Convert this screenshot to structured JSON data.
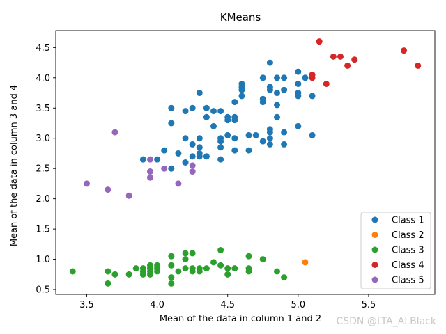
{
  "chart_data": {
    "type": "scatter",
    "title": "KMeans",
    "xlabel": "Mean of the data in column 1 and 2",
    "ylabel": "Mean of the data in column 3 and 4",
    "xlim": [
      3.28,
      5.97
    ],
    "ylim": [
      0.42,
      4.78
    ],
    "xticks": [
      3.5,
      4.0,
      4.5,
      5.0,
      5.5
    ],
    "xtick_labels": [
      "3.5",
      "4.0",
      "4.5",
      "5.0",
      "5.5"
    ],
    "yticks": [
      0.5,
      1.0,
      1.5,
      2.0,
      2.5,
      3.0,
      3.5,
      4.0,
      4.5
    ],
    "ytick_labels": [
      "0.5",
      "1.0",
      "1.5",
      "2.0",
      "2.5",
      "3.0",
      "3.5",
      "4.0",
      "4.5"
    ],
    "grid": false,
    "legend_position": "lower-right",
    "series": [
      {
        "name": "Class 1",
        "color": "#1f77b4",
        "points": [
          [
            3.9,
            2.65
          ],
          [
            4.0,
            2.65
          ],
          [
            4.05,
            2.8
          ],
          [
            4.1,
            2.5
          ],
          [
            4.1,
            3.25
          ],
          [
            4.1,
            3.5
          ],
          [
            4.15,
            2.75
          ],
          [
            4.2,
            2.6
          ],
          [
            4.2,
            3.0
          ],
          [
            4.2,
            3.45
          ],
          [
            4.25,
            2.7
          ],
          [
            4.25,
            2.9
          ],
          [
            4.25,
            3.5
          ],
          [
            4.3,
            2.7
          ],
          [
            4.3,
            2.75
          ],
          [
            4.3,
            2.85
          ],
          [
            4.3,
            3.0
          ],
          [
            4.3,
            3.75
          ],
          [
            4.35,
            2.7
          ],
          [
            4.35,
            3.35
          ],
          [
            4.35,
            3.5
          ],
          [
            4.4,
            3.2
          ],
          [
            4.4,
            3.45
          ],
          [
            4.45,
            2.65
          ],
          [
            4.45,
            2.85
          ],
          [
            4.45,
            2.95
          ],
          [
            4.45,
            3.0
          ],
          [
            4.45,
            3.45
          ],
          [
            4.5,
            3.05
          ],
          [
            4.5,
            3.3
          ],
          [
            4.5,
            3.35
          ],
          [
            4.55,
            2.8
          ],
          [
            4.55,
            3.0
          ],
          [
            4.55,
            3.3
          ],
          [
            4.55,
            3.35
          ],
          [
            4.55,
            3.6
          ],
          [
            4.6,
            3.7
          ],
          [
            4.6,
            3.8
          ],
          [
            4.6,
            3.85
          ],
          [
            4.6,
            3.9
          ],
          [
            4.65,
            2.8
          ],
          [
            4.65,
            3.05
          ],
          [
            4.7,
            3.05
          ],
          [
            4.75,
            2.95
          ],
          [
            4.75,
            3.6
          ],
          [
            4.75,
            3.65
          ],
          [
            4.75,
            4.0
          ],
          [
            4.8,
            2.9
          ],
          [
            4.8,
            3.0
          ],
          [
            4.8,
            3.1
          ],
          [
            4.8,
            3.15
          ],
          [
            4.8,
            3.8
          ],
          [
            4.8,
            3.85
          ],
          [
            4.8,
            4.25
          ],
          [
            4.85,
            3.35
          ],
          [
            4.85,
            3.55
          ],
          [
            4.85,
            3.75
          ],
          [
            4.85,
            4.0
          ],
          [
            4.9,
            2.9
          ],
          [
            4.9,
            3.1
          ],
          [
            4.9,
            3.8
          ],
          [
            4.9,
            4.0
          ],
          [
            5.0,
            3.2
          ],
          [
            5.0,
            3.7
          ],
          [
            5.0,
            3.75
          ],
          [
            5.0,
            3.9
          ],
          [
            5.0,
            4.1
          ],
          [
            5.05,
            4.0
          ],
          [
            5.1,
            3.05
          ],
          [
            5.1,
            3.7
          ]
        ]
      },
      {
        "name": "Class 2",
        "color": "#ff7f0e",
        "points": [
          [
            5.05,
            0.95
          ]
        ]
      },
      {
        "name": "Class 3",
        "color": "#2ca02c",
        "points": [
          [
            3.4,
            0.8
          ],
          [
            3.65,
            0.6
          ],
          [
            3.65,
            0.8
          ],
          [
            3.7,
            0.75
          ],
          [
            3.8,
            0.75
          ],
          [
            3.85,
            0.85
          ],
          [
            3.9,
            0.75
          ],
          [
            3.9,
            0.8
          ],
          [
            3.9,
            0.85
          ],
          [
            3.95,
            0.75
          ],
          [
            3.95,
            0.8
          ],
          [
            3.95,
            0.85
          ],
          [
            3.95,
            0.9
          ],
          [
            4.0,
            0.8
          ],
          [
            4.0,
            0.85
          ],
          [
            4.0,
            0.9
          ],
          [
            4.1,
            0.6
          ],
          [
            4.1,
            0.7
          ],
          [
            4.1,
            0.9
          ],
          [
            4.1,
            1.05
          ],
          [
            4.15,
            0.8
          ],
          [
            4.2,
            0.85
          ],
          [
            4.2,
            1.0
          ],
          [
            4.2,
            1.1
          ],
          [
            4.25,
            0.8
          ],
          [
            4.25,
            0.85
          ],
          [
            4.25,
            1.1
          ],
          [
            4.3,
            0.8
          ],
          [
            4.3,
            0.85
          ],
          [
            4.35,
            0.85
          ],
          [
            4.4,
            0.95
          ],
          [
            4.45,
            0.9
          ],
          [
            4.45,
            1.15
          ],
          [
            4.5,
            0.75
          ],
          [
            4.5,
            0.85
          ],
          [
            4.55,
            0.85
          ],
          [
            4.65,
            0.8
          ],
          [
            4.65,
            0.85
          ],
          [
            4.65,
            1.05
          ],
          [
            4.75,
            1.0
          ],
          [
            4.85,
            0.8
          ],
          [
            4.9,
            0.7
          ]
        ]
      },
      {
        "name": "Class 4",
        "color": "#d62728",
        "points": [
          [
            5.1,
            4.0
          ],
          [
            5.1,
            4.05
          ],
          [
            5.15,
            4.6
          ],
          [
            5.2,
            3.9
          ],
          [
            5.25,
            4.35
          ],
          [
            5.3,
            4.35
          ],
          [
            5.35,
            4.2
          ],
          [
            5.4,
            4.3
          ],
          [
            5.75,
            4.45
          ],
          [
            5.85,
            4.2
          ]
        ]
      },
      {
        "name": "Class 5",
        "color": "#9467bd",
        "points": [
          [
            3.5,
            2.25
          ],
          [
            3.65,
            2.15
          ],
          [
            3.7,
            3.1
          ],
          [
            3.8,
            2.05
          ],
          [
            3.95,
            2.35
          ],
          [
            3.95,
            2.45
          ],
          [
            3.95,
            2.65
          ],
          [
            4.05,
            2.5
          ],
          [
            4.15,
            2.25
          ],
          [
            4.25,
            2.45
          ],
          [
            4.25,
            2.55
          ]
        ]
      }
    ]
  },
  "watermark": "CSDN @LTA_ALBlack"
}
